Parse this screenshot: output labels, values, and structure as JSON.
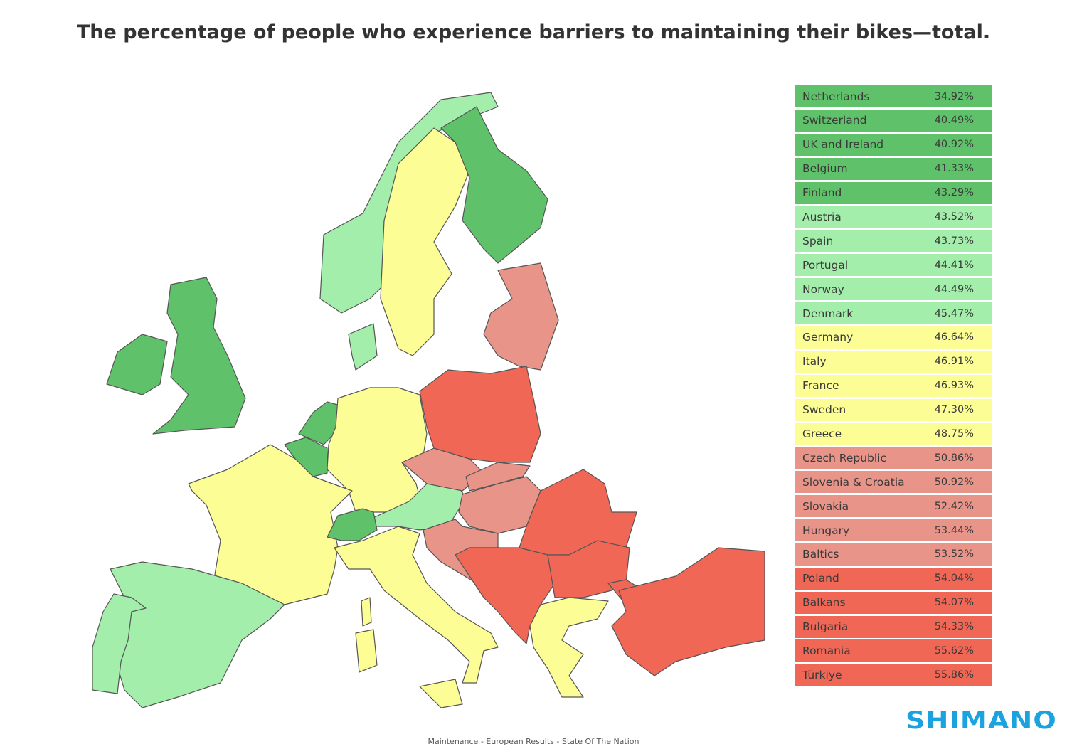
{
  "title": "The percentage of people who experience barriers to maintaining their bikes—total.",
  "colors": {
    "dark_green": "#5fc26a",
    "light_green": "#a3eeab",
    "yellow": "#fdfd96",
    "salmon": "#e89488",
    "red": "#f06756",
    "logo": "#1aa3de"
  },
  "legend": [
    {
      "name": "Netherlands",
      "value": "34.92%",
      "color": "#5fc26a"
    },
    {
      "name": "Switzerland",
      "value": "40.49%",
      "color": "#5fc26a"
    },
    {
      "name": "UK and Ireland",
      "value": "40.92%",
      "color": "#5fc26a"
    },
    {
      "name": "Belgium",
      "value": "41.33%",
      "color": "#5fc26a"
    },
    {
      "name": "Finland",
      "value": "43.29%",
      "color": "#5fc26a"
    },
    {
      "name": "Austria",
      "value": "43.52%",
      "color": "#a3eeab"
    },
    {
      "name": "Spain",
      "value": "43.73%",
      "color": "#a3eeab"
    },
    {
      "name": "Portugal",
      "value": "44.41%",
      "color": "#a3eeab"
    },
    {
      "name": "Norway",
      "value": "44.49%",
      "color": "#a3eeab"
    },
    {
      "name": "Denmark",
      "value": "45.47%",
      "color": "#a3eeab"
    },
    {
      "name": "Germany",
      "value": "46.64%",
      "color": "#fdfd96"
    },
    {
      "name": "Italy",
      "value": "46.91%",
      "color": "#fdfd96"
    },
    {
      "name": "France",
      "value": "46.93%",
      "color": "#fdfd96"
    },
    {
      "name": "Sweden",
      "value": "47.30%",
      "color": "#fdfd96"
    },
    {
      "name": "Greece",
      "value": "48.75%",
      "color": "#fdfd96"
    },
    {
      "name": "Czech Republic",
      "value": "50.86%",
      "color": "#e89488"
    },
    {
      "name": "Slovenia & Croatia",
      "value": "50.92%",
      "color": "#e89488"
    },
    {
      "name": "Slovakia",
      "value": "52.42%",
      "color": "#e89488"
    },
    {
      "name": "Hungary",
      "value": "53.44%",
      "color": "#e89488"
    },
    {
      "name": "Baltics",
      "value": "53.52%",
      "color": "#e89488"
    },
    {
      "name": "Poland",
      "value": "54.04%",
      "color": "#f06756"
    },
    {
      "name": "Balkans",
      "value": "54.07%",
      "color": "#f06756"
    },
    {
      "name": "Bulgaria",
      "value": "54.33%",
      "color": "#f06756"
    },
    {
      "name": "Romania",
      "value": "55.62%",
      "color": "#f06756"
    },
    {
      "name": "Türkiye",
      "value": "55.86%",
      "color": "#f06756"
    }
  ],
  "logo": "SHIMANO",
  "footer": "Maintenance - European Results - State Of The Nation"
}
